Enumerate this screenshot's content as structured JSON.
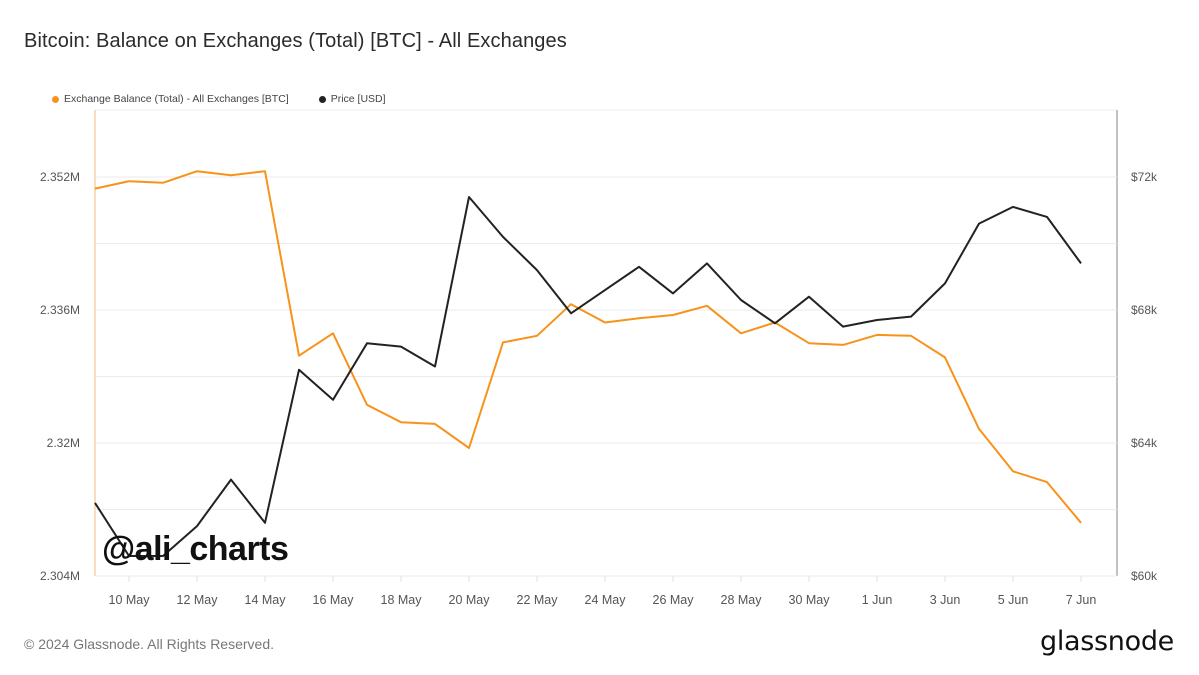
{
  "header": {
    "title": "Bitcoin: Balance on Exchanges (Total) [BTC] - All Exchanges"
  },
  "legend": [
    {
      "label": "Exchange Balance (Total) - All Exchanges [BTC]",
      "color": "#f7931a"
    },
    {
      "label": "Price [USD]",
      "color": "#222222"
    }
  ],
  "watermark": "@ali_charts",
  "footer": {
    "copyright": "© 2024 Glassnode. All Rights Reserved.",
    "brand": "glassnode"
  },
  "chart_data": {
    "type": "line",
    "title": "Bitcoin: Balance on Exchanges (Total) [BTC] - All Exchanges",
    "xlabel": "",
    "ylabel_left": "Exchange Balance [BTC]",
    "ylabel_right": "Price [USD]",
    "x": [
      "9 May",
      "10 May",
      "11 May",
      "12 May",
      "13 May",
      "14 May",
      "15 May",
      "16 May",
      "17 May",
      "18 May",
      "19 May",
      "20 May",
      "21 May",
      "22 May",
      "23 May",
      "24 May",
      "25 May",
      "26 May",
      "27 May",
      "28 May",
      "29 May",
      "30 May",
      "31 May",
      "1 Jun",
      "2 Jun",
      "3 Jun",
      "4 Jun",
      "5 Jun",
      "6 Jun",
      "7 Jun"
    ],
    "x_tick_labels": [
      "10 May",
      "12 May",
      "14 May",
      "16 May",
      "18 May",
      "20 May",
      "22 May",
      "24 May",
      "26 May",
      "28 May",
      "30 May",
      "1 Jun",
      "3 Jun",
      "5 Jun",
      "7 Jun"
    ],
    "y_left_ticks": [
      "2.352M",
      "2.336M",
      "2.32M",
      "2.304M"
    ],
    "y_right_ticks": [
      "$72k",
      "$68k",
      "$64k",
      "$60k"
    ],
    "ylim_left": [
      2.304,
      2.356
    ],
    "ylim_right": [
      60000,
      73500
    ],
    "grid": true,
    "legend_position": "top-left",
    "series": [
      {
        "name": "Exchange Balance (Total) - All Exchanges [BTC]",
        "axis": "left",
        "unit": "M BTC",
        "color": "#f7931a",
        "values": [
          2.3506,
          2.3515,
          2.3513,
          2.3527,
          2.3522,
          2.3527,
          2.3305,
          2.3332,
          2.3246,
          2.3225,
          2.3223,
          2.3194,
          2.3321,
          2.3329,
          2.3367,
          2.3345,
          2.335,
          2.3354,
          2.3365,
          2.3332,
          2.3345,
          2.332,
          2.3318,
          2.333,
          2.3329,
          2.3303,
          2.3217,
          2.3166,
          2.3153,
          2.3104
        ]
      },
      {
        "name": "Price [USD]",
        "axis": "right",
        "unit": "USD",
        "color": "#222222",
        "values": [
          62200,
          60600,
          60600,
          61500,
          62900,
          61600,
          66200,
          65300,
          67000,
          66900,
          66300,
          71400,
          70200,
          69200,
          67900,
          68600,
          69300,
          68500,
          69400,
          68300,
          67600,
          68400,
          67500,
          67700,
          67800,
          68800,
          70600,
          71100,
          70800,
          69400
        ]
      }
    ]
  }
}
